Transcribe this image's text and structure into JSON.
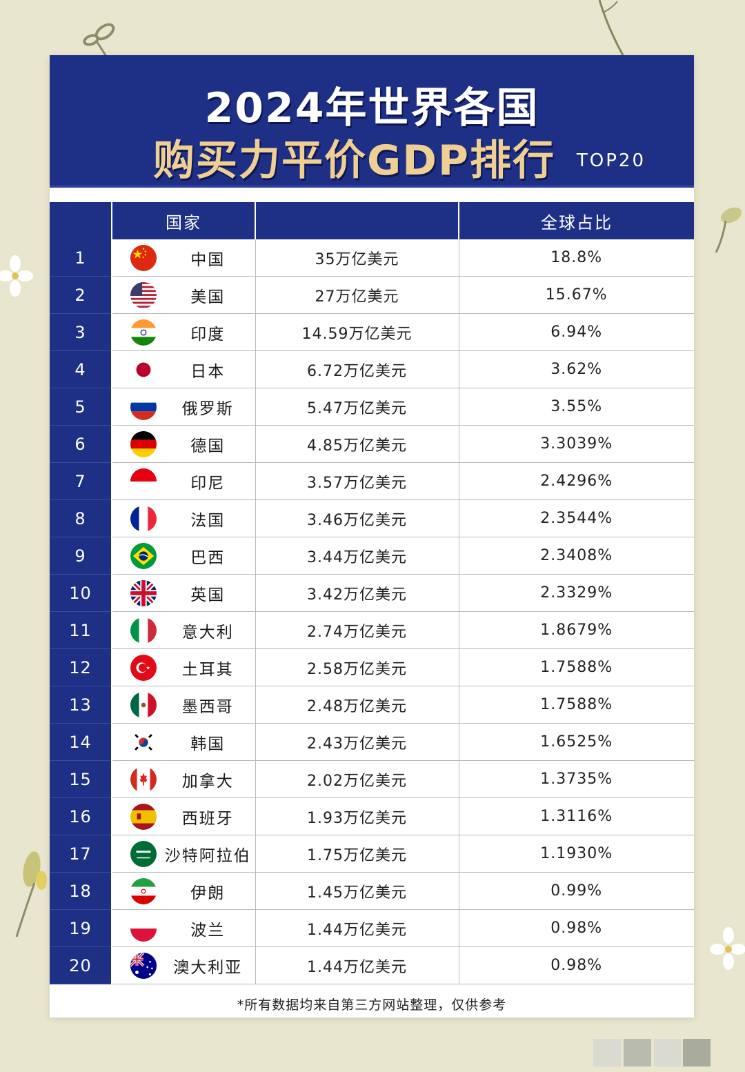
{
  "title": {
    "line1": "2024年世界各国",
    "line2": "购买力平价GDP排行",
    "badge": "TOP20"
  },
  "table": {
    "headers": {
      "rank": "",
      "country": "国家",
      "gdp": "",
      "share": "全球占比"
    },
    "rows": [
      {
        "rank": "1",
        "country": "中国",
        "gdp": "35万亿美元",
        "share": "18.8%",
        "flag": "china-flag-icon"
      },
      {
        "rank": "2",
        "country": "美国",
        "gdp": "27万亿美元",
        "share": "15.67%",
        "flag": "usa-flag-icon"
      },
      {
        "rank": "3",
        "country": "印度",
        "gdp": "14.59万亿美元",
        "share": "6.94%",
        "flag": "india-flag-icon"
      },
      {
        "rank": "4",
        "country": "日本",
        "gdp": "6.72万亿美元",
        "share": "3.62%",
        "flag": "japan-flag-icon"
      },
      {
        "rank": "5",
        "country": "俄罗斯",
        "gdp": "5.47万亿美元",
        "share": "3.55%",
        "flag": "russia-flag-icon"
      },
      {
        "rank": "6",
        "country": "德国",
        "gdp": "4.85万亿美元",
        "share": "3.3039%",
        "flag": "germany-flag-icon"
      },
      {
        "rank": "7",
        "country": "印尼",
        "gdp": "3.57万亿美元",
        "share": "2.4296%",
        "flag": "indonesia-flag-icon"
      },
      {
        "rank": "8",
        "country": "法国",
        "gdp": "3.46万亿美元",
        "share": "2.3544%",
        "flag": "france-flag-icon"
      },
      {
        "rank": "9",
        "country": "巴西",
        "gdp": "3.44万亿美元",
        "share": "2.3408%",
        "flag": "brazil-flag-icon"
      },
      {
        "rank": "10",
        "country": "英国",
        "gdp": "3.42万亿美元",
        "share": "2.3329%",
        "flag": "uk-flag-icon"
      },
      {
        "rank": "11",
        "country": "意大利",
        "gdp": "2.74万亿美元",
        "share": "1.8679%",
        "flag": "italy-flag-icon"
      },
      {
        "rank": "12",
        "country": "土耳其",
        "gdp": "2.58万亿美元",
        "share": "1.7588%",
        "flag": "turkey-flag-icon"
      },
      {
        "rank": "13",
        "country": "墨西哥",
        "gdp": "2.48万亿美元",
        "share": "1.7588%",
        "flag": "mexico-flag-icon"
      },
      {
        "rank": "14",
        "country": "韩国",
        "gdp": "2.43万亿美元",
        "share": "1.6525%",
        "flag": "korea-flag-icon"
      },
      {
        "rank": "15",
        "country": "加拿大",
        "gdp": "2.02万亿美元",
        "share": "1.3735%",
        "flag": "canada-flag-icon"
      },
      {
        "rank": "16",
        "country": "西班牙",
        "gdp": "1.93万亿美元",
        "share": "1.3116%",
        "flag": "spain-flag-icon"
      },
      {
        "rank": "17",
        "country": "沙特阿拉伯",
        "gdp": "1.75万亿美元",
        "share": "1.1930%",
        "flag": "saudi-flag-icon"
      },
      {
        "rank": "18",
        "country": "伊朗",
        "gdp": "1.45万亿美元",
        "share": "0.99%",
        "flag": "iran-flag-icon"
      },
      {
        "rank": "19",
        "country": "波兰",
        "gdp": "1.44万亿美元",
        "share": "0.98%",
        "flag": "poland-flag-icon"
      },
      {
        "rank": "20",
        "country": "澳大利亚",
        "gdp": "1.44万亿美元",
        "share": "0.98%",
        "flag": "australia-flag-icon"
      }
    ]
  },
  "footnote": "*所有数据均来自第三方网站整理，仅供参考",
  "colors": {
    "navy": "#1e2f86",
    "gold": "#f0cf94",
    "background": "#e9e6cf"
  }
}
